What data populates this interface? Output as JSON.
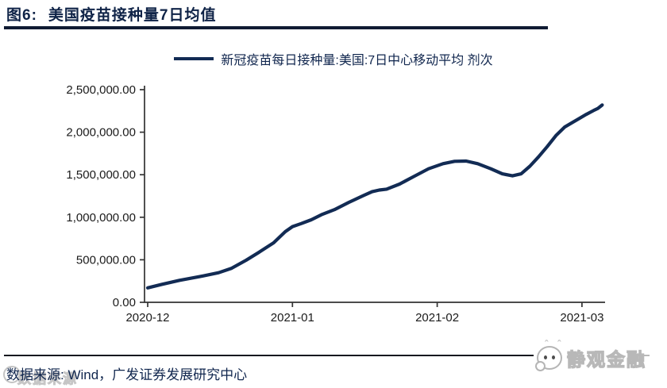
{
  "header": {
    "figure_label": "图6:",
    "title": "美国疫苗接种量7日均值"
  },
  "legend": {
    "label": "新冠疫苗每日接种量:美国:7日中心移动平均 剂次"
  },
  "colors": {
    "accent_navy": "#122b54",
    "title_navy": "#0f2347",
    "axis": "#333333",
    "watermark_gray": "#c6c6c6"
  },
  "chart_data": {
    "type": "line",
    "title": "美国疫苗接种量7日均值",
    "xlabel": "",
    "ylabel": "",
    "x_unit": "months since 2020-12-01 (fractional)",
    "xlim": [
      -0.03,
      3.16
    ],
    "ylim": [
      0,
      2500000
    ],
    "grid": false,
    "legend_position": "top-center",
    "x_ticks": [
      {
        "pos": 0,
        "label": "2020-12"
      },
      {
        "pos": 1,
        "label": "2021-01"
      },
      {
        "pos": 2,
        "label": "2021-02"
      },
      {
        "pos": 3,
        "label": "2021-03"
      }
    ],
    "y_ticks": [
      0,
      500000,
      1000000,
      1500000,
      2000000,
      2500000
    ],
    "y_tick_labels": [
      "0.00",
      "500,000.00",
      "1,000,000.00",
      "1,500,000.00",
      "2,000,000.00",
      "2,500,000.00"
    ],
    "series": [
      {
        "name": "新冠疫苗每日接种量:美国:7日中心移动平均 剂次",
        "color": "#122b54",
        "points": [
          [
            0.0,
            170000
          ],
          [
            0.1,
            212000
          ],
          [
            0.22,
            258000
          ],
          [
            0.36,
            302000
          ],
          [
            0.49,
            348000
          ],
          [
            0.58,
            400000
          ],
          [
            0.68,
            495000
          ],
          [
            0.77,
            590000
          ],
          [
            0.87,
            700000
          ],
          [
            0.95,
            830000
          ],
          [
            1.0,
            890000
          ],
          [
            1.06,
            925000
          ],
          [
            1.13,
            970000
          ],
          [
            1.2,
            1030000
          ],
          [
            1.29,
            1090000
          ],
          [
            1.39,
            1175000
          ],
          [
            1.49,
            1255000
          ],
          [
            1.55,
            1300000
          ],
          [
            1.6,
            1320000
          ],
          [
            1.65,
            1330000
          ],
          [
            1.74,
            1390000
          ],
          [
            1.84,
            1480000
          ],
          [
            1.94,
            1570000
          ],
          [
            2.04,
            1630000
          ],
          [
            2.12,
            1658000
          ],
          [
            2.2,
            1660000
          ],
          [
            2.28,
            1630000
          ],
          [
            2.37,
            1570000
          ],
          [
            2.45,
            1510000
          ],
          [
            2.52,
            1487000
          ],
          [
            2.58,
            1510000
          ],
          [
            2.64,
            1600000
          ],
          [
            2.7,
            1710000
          ],
          [
            2.76,
            1830000
          ],
          [
            2.82,
            1960000
          ],
          [
            2.88,
            2060000
          ],
          [
            2.93,
            2110000
          ],
          [
            2.98,
            2160000
          ],
          [
            3.03,
            2210000
          ],
          [
            3.08,
            2255000
          ],
          [
            3.11,
            2280000
          ],
          [
            3.14,
            2320000
          ]
        ]
      }
    ]
  },
  "footer": {
    "source": "数据来源: Wind，广发证券发展研究中心",
    "watermark_ghost": "数据来源",
    "logo_text": "静观金融",
    "logo_carets": "ˆ ˆ"
  }
}
